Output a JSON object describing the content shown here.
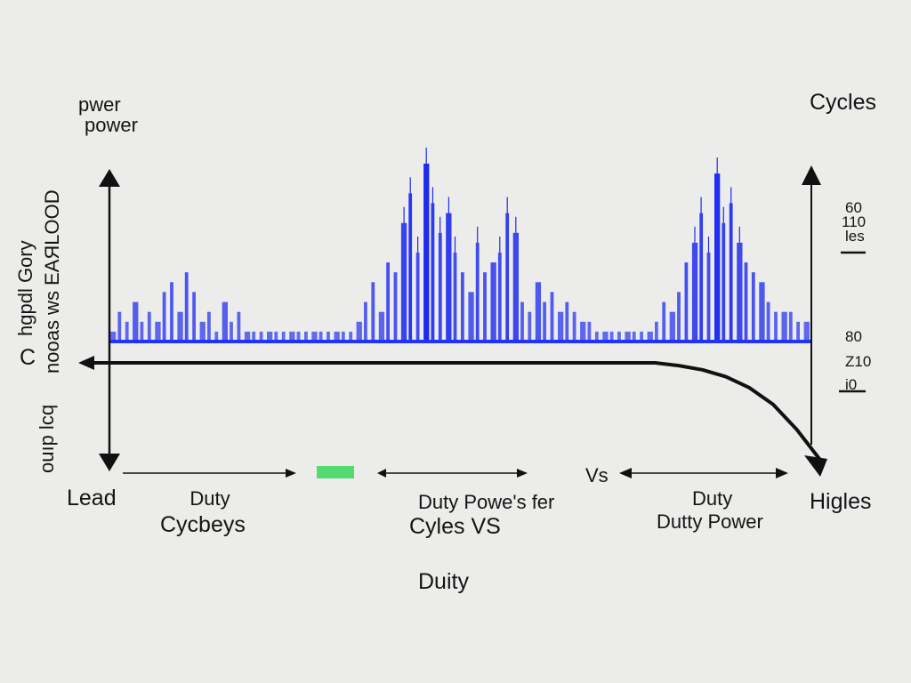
{
  "texts": {
    "power_1": "pwer",
    "power_2": "power",
    "cycles": "Cycles",
    "lead": "Lead",
    "higles": "Higles",
    "duty_left_1": "Duty",
    "duty_left_2": "Cycbeys",
    "duty_mid_1": "Duty Powe's fer",
    "duty_mid_2": "Cyles VS",
    "vs": "Vs",
    "duty_right_1": "Duty",
    "duty_right_2": "Dutty Power",
    "duty_bottom": "Duity",
    "left_c": "C",
    "left_vertical_1": "hgpdl Gory",
    "left_vertical_2": "nooas ws ЕАЯLOOD",
    "left_vertical_3": "ouıp lcq",
    "right_ticks_top": [
      "60",
      "110",
      "les"
    ],
    "right_ticks_bottom": [
      "80",
      "Z10",
      "i0"
    ]
  },
  "chart_data": {
    "type": "bar",
    "series": [
      {
        "color": "#1d2bf0",
        "values": [
          1,
          3,
          2,
          4,
          2,
          3,
          2,
          5,
          6,
          3,
          7,
          5,
          2,
          3,
          1,
          4,
          2,
          3,
          1,
          1,
          1,
          1,
          1,
          1,
          1,
          1,
          1,
          1,
          1,
          1,
          1,
          1,
          1,
          2,
          4,
          6,
          3,
          8,
          7,
          12,
          15,
          9,
          18,
          14,
          11,
          13,
          9,
          7,
          5,
          10,
          7,
          8,
          9,
          13,
          11,
          4,
          3,
          6,
          4,
          5,
          3,
          4,
          3,
          2,
          2,
          1,
          1,
          1,
          1,
          1,
          1,
          1,
          1,
          2,
          4,
          3,
          5,
          8,
          10,
          13,
          9,
          17,
          12,
          14,
          10,
          8,
          7,
          6,
          4,
          3,
          3,
          3,
          2,
          2
        ]
      }
    ],
    "line": {
      "color": "#111111",
      "values": [
        1,
        1,
        1,
        1,
        1,
        1,
        1,
        1,
        1,
        1,
        1,
        1,
        1,
        1,
        1,
        1,
        1,
        1,
        1,
        1,
        1,
        1,
        1,
        1,
        1,
        0.98,
        0.95,
        0.9,
        0.82,
        0.7,
        0.52,
        0.3
      ]
    },
    "accent_mark_color": "#38d85a"
  }
}
